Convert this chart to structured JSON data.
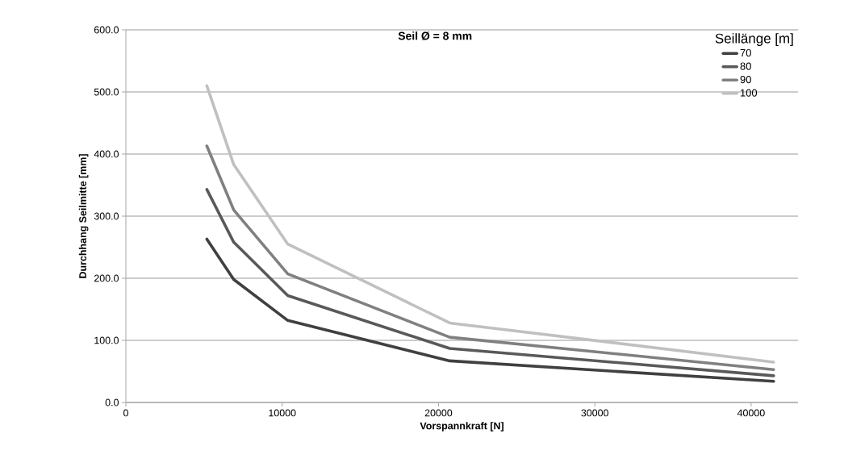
{
  "chart_data": {
    "type": "line",
    "title": "Seil Ø = 8 mm",
    "xlabel": "Vorspannkraft [N]",
    "ylabel": "Durchhang Seilmitte [mm]",
    "legend_title": "Seillänge [m]",
    "x": [
      5180,
      6900,
      10360,
      20720,
      41440
    ],
    "series": [
      {
        "name": "70",
        "color": "#404040",
        "values": [
          263,
          198,
          132,
          67,
          34
        ]
      },
      {
        "name": "80",
        "color": "#595959",
        "values": [
          343,
          258,
          172,
          87,
          43
        ]
      },
      {
        "name": "90",
        "color": "#808080",
        "values": [
          413,
          310,
          207,
          105,
          53
        ]
      },
      {
        "name": "100",
        "color": "#c0c0c0",
        "values": [
          510,
          383,
          255,
          128,
          65
        ]
      }
    ],
    "xlim": [
      0,
      43000
    ],
    "xticks": [
      0,
      10000,
      20000,
      30000,
      40000
    ],
    "ylim": [
      0,
      600
    ],
    "yticks": [
      {
        "value": 0,
        "label": "0.0"
      },
      {
        "value": 100,
        "label": "100.0"
      },
      {
        "value": 200,
        "label": "200.0"
      },
      {
        "value": 300,
        "label": "300.0"
      },
      {
        "value": 400,
        "label": "400.0"
      },
      {
        "value": 500,
        "label": "500.0"
      },
      {
        "value": 600,
        "label": "600.0"
      }
    ],
    "grid": "y",
    "legend": "top right",
    "marker": "none",
    "line_style": "solid"
  }
}
